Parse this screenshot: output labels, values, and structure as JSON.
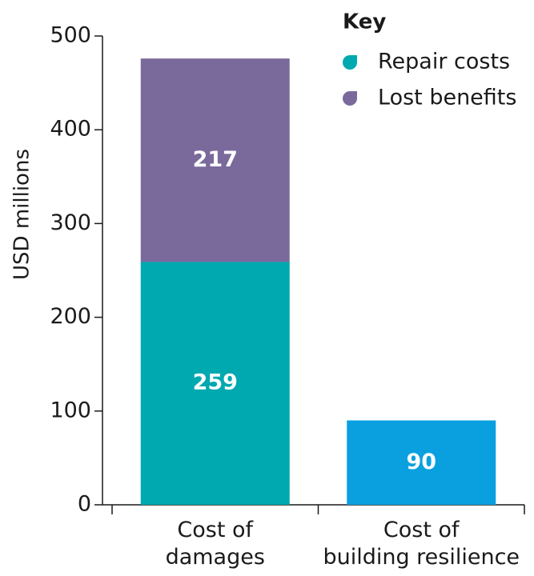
{
  "chart_data": {
    "type": "stacked_bar",
    "y_label": "USD millions",
    "legend_title": "Key",
    "categories": [
      "Cost of\ndamages",
      "Cost of\nbuilding resilience"
    ],
    "series": [
      {
        "name": "Repair costs",
        "color": "#00a8b0",
        "values": [
          259,
          null
        ]
      },
      {
        "name": "Lost benefits",
        "color": "#7a6a9c",
        "values": [
          217,
          null
        ]
      },
      {
        "color": "#0aa0e0",
        "values": [
          null,
          90
        ]
      }
    ],
    "ylim": [
      0,
      500
    ],
    "yticks": [
      0,
      100,
      200,
      300,
      400,
      500
    ],
    "legend": "top-right",
    "grid": false
  }
}
